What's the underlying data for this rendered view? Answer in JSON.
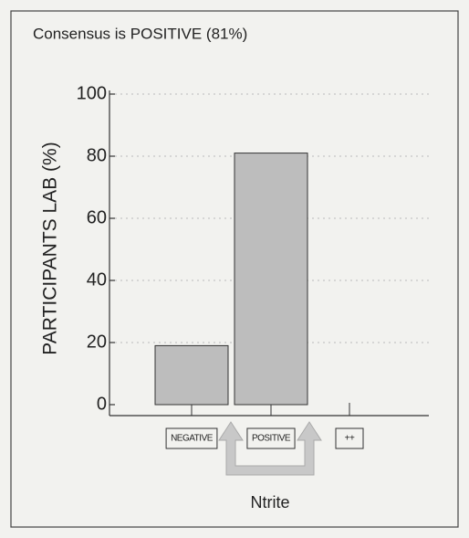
{
  "chart_data": {
    "type": "bar",
    "title": "Consensus is POSITIVE (81%)",
    "y_label": "PARTICIPANTS LAB (%)",
    "x_label": "Ntrite",
    "categories": [
      "NEGATIVE",
      "POSITIVE",
      "++"
    ],
    "values": [
      19,
      81,
      0
    ],
    "color": "#bdbdbd",
    "ylim": [
      0,
      100
    ],
    "yticks": [
      0,
      20,
      40,
      60,
      80,
      100
    ],
    "grid": true
  }
}
